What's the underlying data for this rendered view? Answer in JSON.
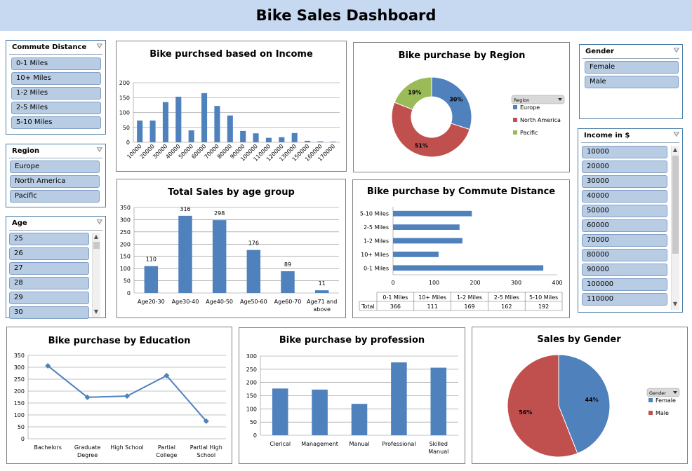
{
  "dashboard": {
    "title": "Bike Sales Dashboard"
  },
  "colors": {
    "blue": "#4f81bd",
    "red": "#c0504d",
    "green": "#9bbb59",
    "titlebar": "#c6d9f1",
    "slicer_item": "#b8cce4"
  },
  "icons": {
    "filter": "filter-clear-icon"
  },
  "slicers": {
    "commute": {
      "title": "Commute Distance",
      "items": [
        "0-1 Miles",
        "10+ Miles",
        "1-2 Miles",
        "2-5 Miles",
        "5-10 Miles"
      ]
    },
    "region": {
      "title": "Region",
      "items": [
        "Europe",
        "North America",
        "Pacific"
      ]
    },
    "age": {
      "title": "Age",
      "items": [
        "25",
        "26",
        "27",
        "28",
        "29",
        "30"
      ]
    },
    "gender": {
      "title": "Gender",
      "items": [
        "Female",
        "Male"
      ]
    },
    "income": {
      "title": "Income in $",
      "items": [
        "10000",
        "20000",
        "30000",
        "40000",
        "50000",
        "60000",
        "70000",
        "80000",
        "90000",
        "100000",
        "110000"
      ]
    }
  },
  "chart_data": [
    {
      "id": "income",
      "type": "bar",
      "title": "Bike purchsed based on Income",
      "categories": [
        "10000",
        "20000",
        "30000",
        "40000",
        "50000",
        "60000",
        "70000",
        "80000",
        "90000",
        "100000",
        "110000",
        "120000",
        "130000",
        "150000",
        "160000",
        "170000"
      ],
      "values": [
        73,
        73,
        135,
        153,
        40,
        165,
        122,
        90,
        38,
        30,
        15,
        17,
        31,
        5,
        3,
        2
      ],
      "ylim": [
        0,
        200
      ],
      "yticks": [
        0,
        50,
        100,
        150,
        200
      ]
    },
    {
      "id": "region",
      "type": "pie",
      "title": "Bike purchase by Region",
      "legend_title": "Region",
      "legend_position": "right",
      "labels": [
        "Europe",
        "North America",
        "Pacific"
      ],
      "values": [
        30,
        51,
        19
      ],
      "data_labels": [
        "30%",
        "51%",
        "19%"
      ]
    },
    {
      "id": "gender",
      "type": "pie",
      "title": "Sales by Gender",
      "legend_title": "Gender",
      "legend_position": "right",
      "labels": [
        "Female",
        "Male"
      ],
      "values": [
        44,
        56
      ],
      "data_labels": [
        "44%",
        "56%"
      ]
    },
    {
      "id": "age",
      "type": "bar",
      "title": "Total Sales by age group",
      "categories": [
        "Age20-30",
        "Age30-40",
        "Age40-50",
        "Age50-60",
        "Age60-70",
        "Age71 and above"
      ],
      "values": [
        110,
        316,
        298,
        176,
        89,
        11
      ],
      "ylim": [
        0,
        350
      ],
      "yticks": [
        0,
        50,
        100,
        150,
        200,
        250,
        300,
        350
      ]
    },
    {
      "id": "commute",
      "type": "bar",
      "orientation": "horizontal",
      "title": "Bike purchase by Commute Distance",
      "categories": [
        "0-1 Miles",
        "10+ Miles",
        "1-2 Miles",
        "2-5 Miles",
        "5-10 Miles"
      ],
      "values": [
        366,
        111,
        169,
        162,
        192
      ],
      "series_name": "Total",
      "xlim": [
        0,
        400
      ],
      "xticks": [
        0,
        100,
        200,
        300,
        400
      ]
    },
    {
      "id": "education",
      "type": "line",
      "title": "Bike purchase by Education",
      "categories": [
        "Bachelors",
        "Graduate Degree",
        "High School",
        "Partial College",
        "Partial High School"
      ],
      "values": [
        306,
        174,
        179,
        265,
        74
      ],
      "ylim": [
        0,
        350
      ],
      "yticks": [
        0,
        50,
        100,
        150,
        200,
        250,
        300,
        350
      ]
    },
    {
      "id": "profession",
      "type": "bar",
      "title": "Bike purchase by profession",
      "categories": [
        "Clerical",
        "Management",
        "Manual",
        "Professional",
        "Skilled Manual"
      ],
      "values": [
        177,
        173,
        119,
        276,
        256
      ],
      "ylim": [
        0,
        300
      ],
      "yticks": [
        0,
        50,
        100,
        150,
        200,
        250,
        300
      ]
    }
  ]
}
